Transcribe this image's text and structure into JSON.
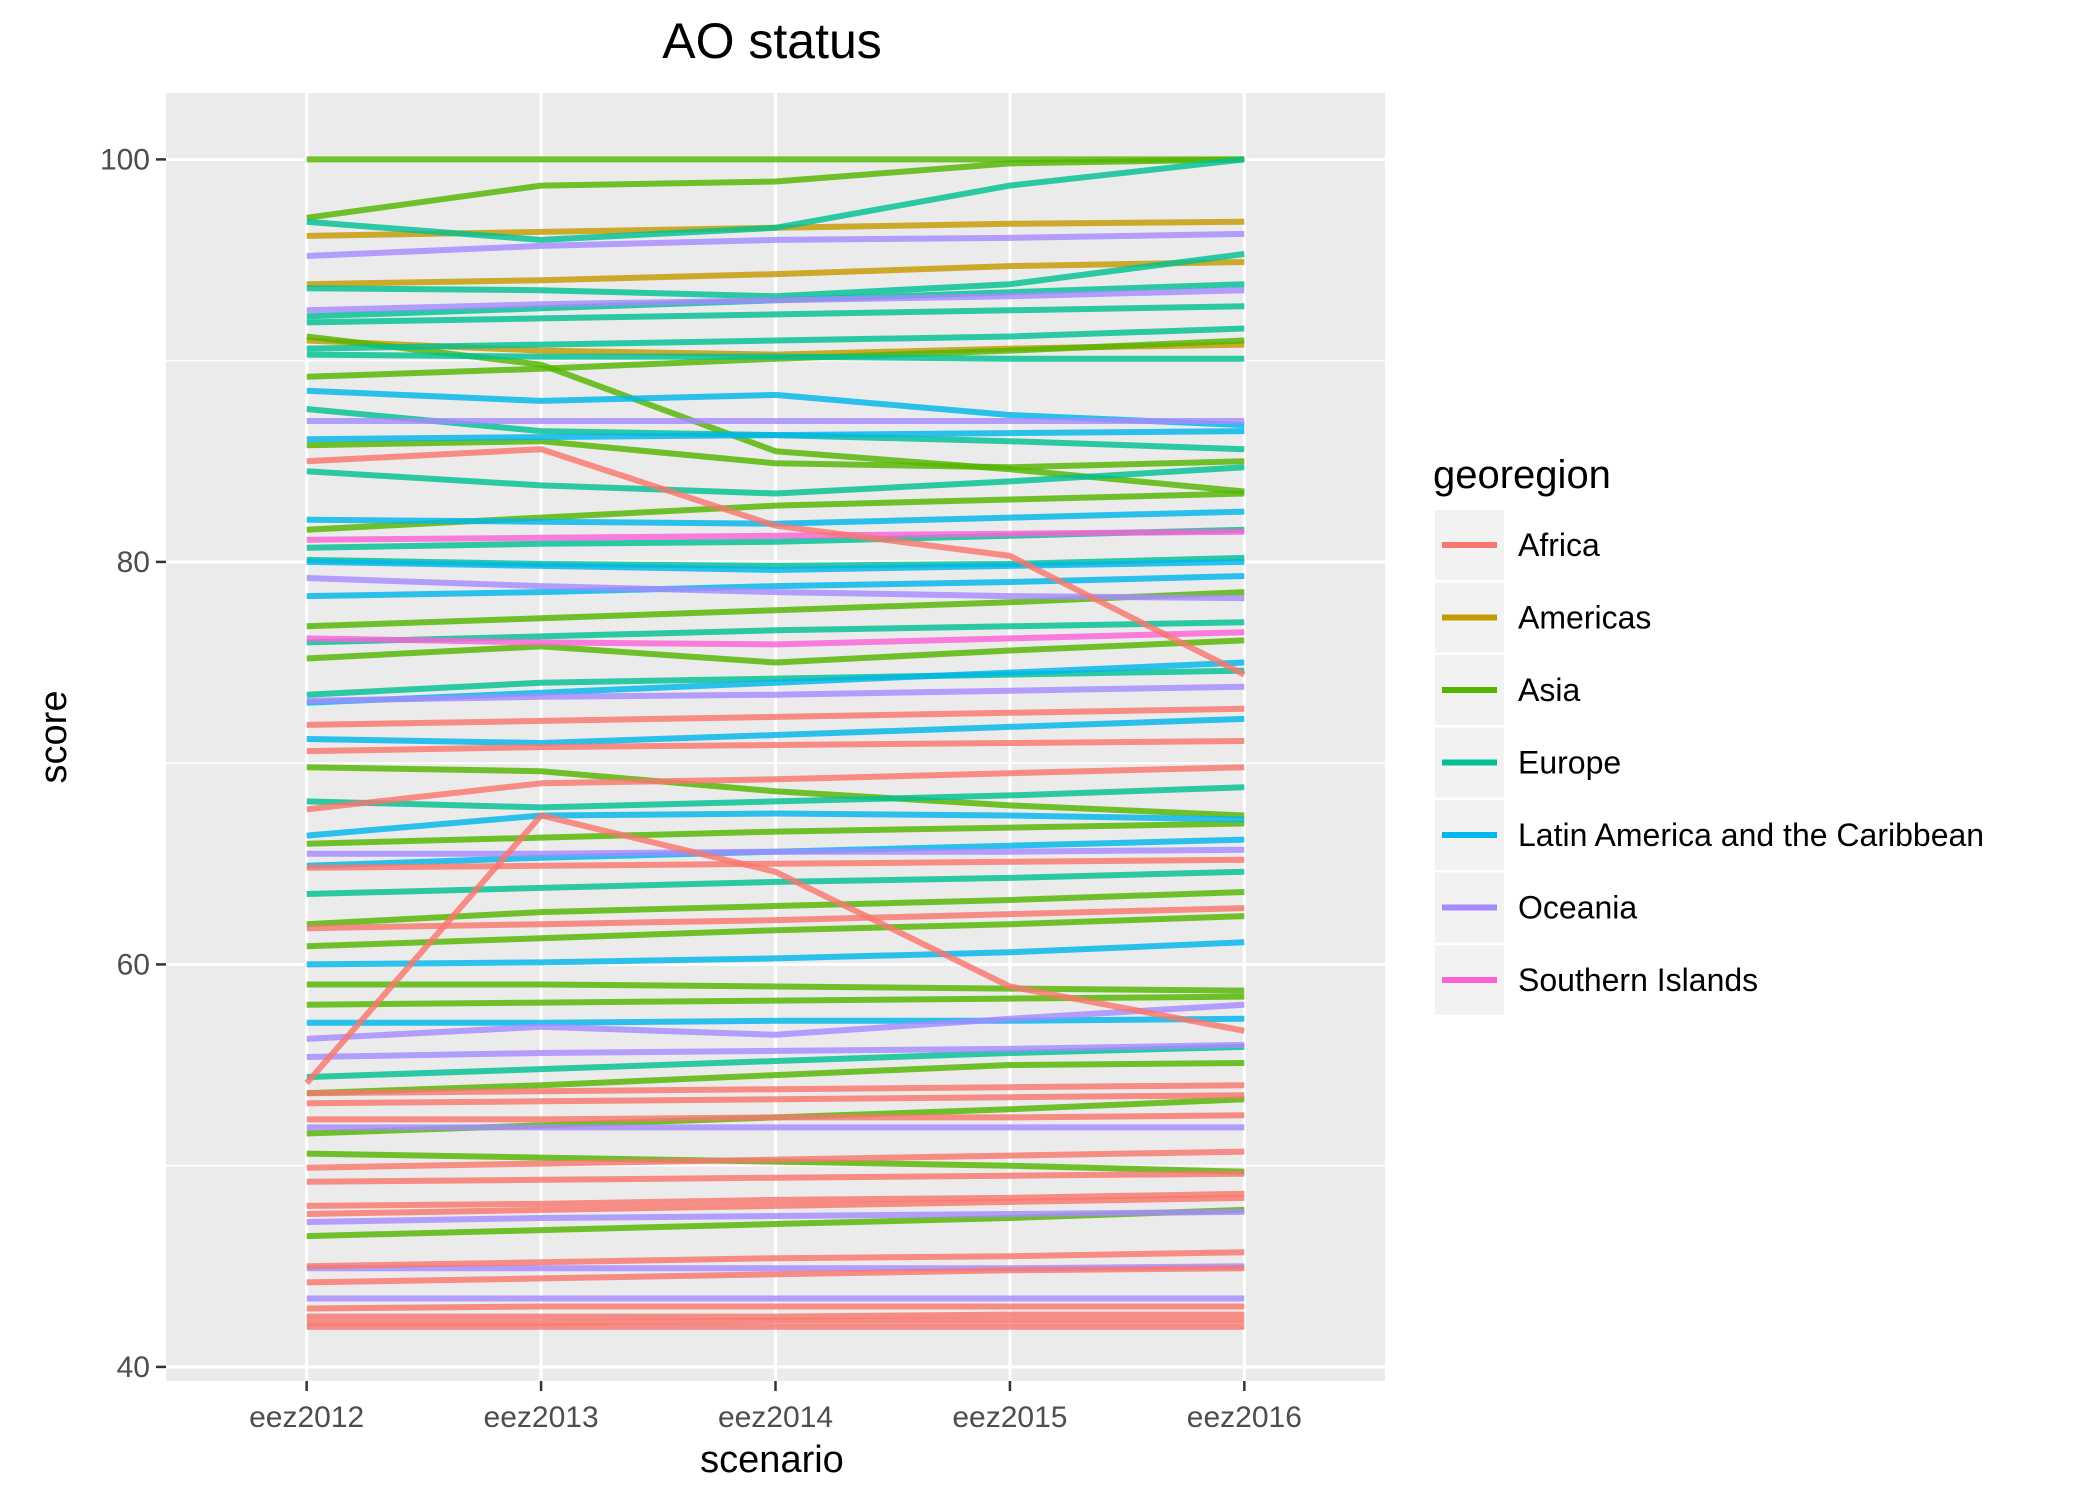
{
  "chart_data": {
    "type": "line",
    "title": "AO status",
    "xlabel": "scenario",
    "ylabel": "score",
    "categories": [
      "eez2012",
      "eez2013",
      "eez2014",
      "eez2015",
      "eez2016"
    ],
    "ylim": [
      39.3,
      103.3
    ],
    "yticks": [
      40,
      60,
      80,
      100
    ],
    "grid": true,
    "legend": {
      "title": "georegion",
      "position": "right",
      "entries": [
        "Africa",
        "Americas",
        "Asia",
        "Europe",
        "Latin America and the Caribbean",
        "Oceania",
        "Southern Islands"
      ]
    },
    "colors": {
      "Africa": "#F8766D",
      "Americas": "#C49A00",
      "Asia": "#53B400",
      "Europe": "#00C094",
      "Latin America and the Caribbean": "#00B6EB",
      "Oceania": "#A58AFF",
      "Southern Islands": "#FB61D7"
    },
    "series": [
      {
        "group": "Americas",
        "values": [
          96.2,
          96.4,
          96.6,
          96.8,
          96.9
        ]
      },
      {
        "group": "Americas",
        "values": [
          93.8,
          94.0,
          94.3,
          94.7,
          94.9
        ]
      },
      {
        "group": "Americas",
        "values": [
          91.0,
          90.5,
          90.3,
          90.6,
          90.8
        ]
      },
      {
        "group": "Asia",
        "values": [
          100.0,
          100.0,
          100.0,
          100.0,
          100.0
        ]
      },
      {
        "group": "Asia",
        "values": [
          97.1,
          98.7,
          98.9,
          99.8,
          100.0
        ]
      },
      {
        "group": "Asia",
        "values": [
          89.2,
          89.6,
          90.1,
          90.5,
          91.0
        ]
      },
      {
        "group": "Asia",
        "values": [
          91.2,
          89.8,
          85.5,
          84.6,
          83.5
        ]
      },
      {
        "group": "Asia",
        "values": [
          85.8,
          86.0,
          84.9,
          84.7,
          85.0
        ]
      },
      {
        "group": "Asia",
        "values": [
          81.6,
          82.2,
          82.8,
          83.1,
          83.4
        ]
      },
      {
        "group": "Asia",
        "values": [
          76.8,
          77.2,
          77.6,
          78.0,
          78.5
        ]
      },
      {
        "group": "Asia",
        "values": [
          75.2,
          75.8,
          75.0,
          75.6,
          76.1
        ]
      },
      {
        "group": "Asia",
        "values": [
          69.8,
          69.6,
          68.6,
          67.9,
          67.4
        ]
      },
      {
        "group": "Asia",
        "values": [
          66.0,
          66.3,
          66.6,
          66.8,
          67.0
        ]
      },
      {
        "group": "Asia",
        "values": [
          62.0,
          62.6,
          62.9,
          63.2,
          63.6
        ]
      },
      {
        "group": "Asia",
        "values": [
          60.9,
          61.3,
          61.7,
          62.0,
          62.4
        ]
      },
      {
        "group": "Asia",
        "values": [
          59.0,
          59.0,
          58.9,
          58.8,
          58.7
        ]
      },
      {
        "group": "Asia",
        "values": [
          58.0,
          58.1,
          58.2,
          58.3,
          58.4
        ]
      },
      {
        "group": "Asia",
        "values": [
          53.6,
          54.0,
          54.5,
          55.0,
          55.1
        ]
      },
      {
        "group": "Asia",
        "values": [
          51.6,
          52.0,
          52.4,
          52.8,
          53.3
        ]
      },
      {
        "group": "Asia",
        "values": [
          50.6,
          50.4,
          50.2,
          50.0,
          49.7
        ]
      },
      {
        "group": "Asia",
        "values": [
          46.5,
          46.8,
          47.1,
          47.4,
          47.8
        ]
      },
      {
        "group": "Europe",
        "values": [
          96.9,
          96.0,
          96.6,
          98.7,
          100.0
        ]
      },
      {
        "group": "Europe",
        "values": [
          93.6,
          93.5,
          93.2,
          93.8,
          95.3
        ]
      },
      {
        "group": "Europe",
        "values": [
          92.2,
          92.6,
          93.0,
          93.4,
          93.8
        ]
      },
      {
        "group": "Europe",
        "values": [
          91.9,
          92.1,
          92.3,
          92.5,
          92.7
        ]
      },
      {
        "group": "Europe",
        "values": [
          90.6,
          90.8,
          91.0,
          91.2,
          91.6
        ]
      },
      {
        "group": "Europe",
        "values": [
          90.3,
          90.2,
          90.2,
          90.1,
          90.1
        ]
      },
      {
        "group": "Europe",
        "values": [
          87.6,
          86.5,
          86.3,
          86.0,
          85.6
        ]
      },
      {
        "group": "Europe",
        "values": [
          84.5,
          83.8,
          83.4,
          84.0,
          84.7
        ]
      },
      {
        "group": "Europe",
        "values": [
          80.7,
          80.9,
          81.0,
          81.3,
          81.6
        ]
      },
      {
        "group": "Europe",
        "values": [
          80.1,
          79.9,
          79.8,
          79.9,
          80.2
        ]
      },
      {
        "group": "Europe",
        "values": [
          76.0,
          76.3,
          76.6,
          76.8,
          77.0
        ]
      },
      {
        "group": "Europe",
        "values": [
          73.4,
          74.0,
          74.2,
          74.4,
          74.6
        ]
      },
      {
        "group": "Europe",
        "values": [
          68.1,
          67.8,
          68.1,
          68.4,
          68.8
        ]
      },
      {
        "group": "Europe",
        "values": [
          63.5,
          63.8,
          64.1,
          64.3,
          64.6
        ]
      },
      {
        "group": "Europe",
        "values": [
          54.4,
          54.8,
          55.2,
          55.6,
          55.9
        ]
      },
      {
        "group": "Latin America and the Caribbean",
        "values": [
          88.5,
          88.0,
          88.3,
          87.3,
          86.8
        ]
      },
      {
        "group": "Latin America and the Caribbean",
        "values": [
          86.1,
          86.2,
          86.3,
          86.4,
          86.5
        ]
      },
      {
        "group": "Latin America and the Caribbean",
        "values": [
          82.1,
          82.0,
          81.9,
          82.2,
          82.5
        ]
      },
      {
        "group": "Latin America and the Caribbean",
        "values": [
          80.0,
          79.8,
          79.6,
          79.8,
          80.0
        ]
      },
      {
        "group": "Latin America and the Caribbean",
        "values": [
          78.3,
          78.5,
          78.8,
          79.0,
          79.3
        ]
      },
      {
        "group": "Latin America and the Caribbean",
        "values": [
          73.0,
          73.5,
          74.0,
          74.5,
          75.0
        ]
      },
      {
        "group": "Latin America and the Caribbean",
        "values": [
          71.2,
          71.0,
          71.4,
          71.8,
          72.2
        ]
      },
      {
        "group": "Latin America and the Caribbean",
        "values": [
          66.4,
          67.4,
          67.5,
          67.4,
          67.2
        ]
      },
      {
        "group": "Latin America and the Caribbean",
        "values": [
          64.9,
          65.3,
          65.6,
          65.9,
          66.2
        ]
      },
      {
        "group": "Latin America and the Caribbean",
        "values": [
          60.0,
          60.1,
          60.3,
          60.6,
          61.1
        ]
      },
      {
        "group": "Latin America and the Caribbean",
        "values": [
          57.1,
          57.1,
          57.2,
          57.2,
          57.3
        ]
      },
      {
        "group": "Oceania",
        "values": [
          95.2,
          95.7,
          96.0,
          96.1,
          96.3
        ]
      },
      {
        "group": "Oceania",
        "values": [
          92.5,
          92.8,
          93.0,
          93.2,
          93.5
        ]
      },
      {
        "group": "Oceania",
        "values": [
          87.0,
          87.0,
          87.0,
          87.0,
          87.0
        ]
      },
      {
        "group": "Oceania",
        "values": [
          79.2,
          78.8,
          78.5,
          78.3,
          78.2
        ]
      },
      {
        "group": "Oceania",
        "values": [
          73.1,
          73.3,
          73.4,
          73.6,
          73.8
        ]
      },
      {
        "group": "Oceania",
        "values": [
          65.5,
          65.5,
          65.6,
          65.6,
          65.7
        ]
      },
      {
        "group": "Oceania",
        "values": [
          56.3,
          56.9,
          56.5,
          57.3,
          58.0
        ]
      },
      {
        "group": "Oceania",
        "values": [
          55.4,
          55.6,
          55.7,
          55.8,
          56.0
        ]
      },
      {
        "group": "Oceania",
        "values": [
          51.9,
          51.9,
          51.9,
          51.9,
          51.9
        ]
      },
      {
        "group": "Oceania",
        "values": [
          47.2,
          47.4,
          47.5,
          47.6,
          47.7
        ]
      },
      {
        "group": "Oceania",
        "values": [
          44.9,
          44.9,
          44.9,
          44.9,
          45.0
        ]
      },
      {
        "group": "Oceania",
        "values": [
          43.4,
          43.4,
          43.4,
          43.4,
          43.4
        ]
      },
      {
        "group": "Southern Islands",
        "values": [
          81.1,
          81.2,
          81.3,
          81.4,
          81.5
        ]
      },
      {
        "group": "Southern Islands",
        "values": [
          76.2,
          76.0,
          75.9,
          76.2,
          76.5
        ]
      },
      {
        "group": "Africa",
        "values": [
          85.0,
          85.6,
          81.8,
          80.3,
          74.4
        ]
      },
      {
        "group": "Africa",
        "values": [
          54.1,
          67.4,
          64.6,
          58.9,
          56.7
        ]
      },
      {
        "group": "Africa",
        "values": [
          67.7,
          69.0,
          69.2,
          69.5,
          69.8
        ]
      },
      {
        "group": "Africa",
        "values": [
          71.9,
          72.1,
          72.3,
          72.5,
          72.7
        ]
      },
      {
        "group": "Africa",
        "values": [
          70.6,
          70.8,
          70.9,
          71.0,
          71.1
        ]
      },
      {
        "group": "Africa",
        "values": [
          64.8,
          64.9,
          65.0,
          65.1,
          65.2
        ]
      },
      {
        "group": "Africa",
        "values": [
          61.8,
          62.0,
          62.2,
          62.5,
          62.8
        ]
      },
      {
        "group": "Africa",
        "values": [
          53.6,
          53.7,
          53.8,
          53.9,
          54.0
        ]
      },
      {
        "group": "Africa",
        "values": [
          53.1,
          53.2,
          53.3,
          53.4,
          53.5
        ]
      },
      {
        "group": "Africa",
        "values": [
          52.3,
          52.3,
          52.4,
          52.4,
          52.5
        ]
      },
      {
        "group": "Africa",
        "values": [
          49.9,
          50.1,
          50.3,
          50.5,
          50.7
        ]
      },
      {
        "group": "Africa",
        "values": [
          49.2,
          49.3,
          49.4,
          49.5,
          49.6
        ]
      },
      {
        "group": "Africa",
        "values": [
          48.0,
          48.1,
          48.3,
          48.4,
          48.6
        ]
      },
      {
        "group": "Africa",
        "values": [
          47.6,
          47.8,
          48.0,
          48.2,
          48.4
        ]
      },
      {
        "group": "Africa",
        "values": [
          45.0,
          45.2,
          45.4,
          45.5,
          45.7
        ]
      },
      {
        "group": "Africa",
        "values": [
          44.2,
          44.4,
          44.6,
          44.8,
          44.9
        ]
      },
      {
        "group": "Africa",
        "values": [
          42.9,
          43.0,
          43.0,
          43.0,
          43.0
        ]
      },
      {
        "group": "Africa",
        "values": [
          42.5,
          42.5,
          42.5,
          42.6,
          42.6
        ]
      },
      {
        "group": "Africa",
        "values": [
          42.2,
          42.2,
          42.3,
          42.3,
          42.3
        ]
      },
      {
        "group": "Africa",
        "values": [
          42.0,
          42.0,
          42.0,
          42.0,
          42.0
        ]
      }
    ]
  }
}
